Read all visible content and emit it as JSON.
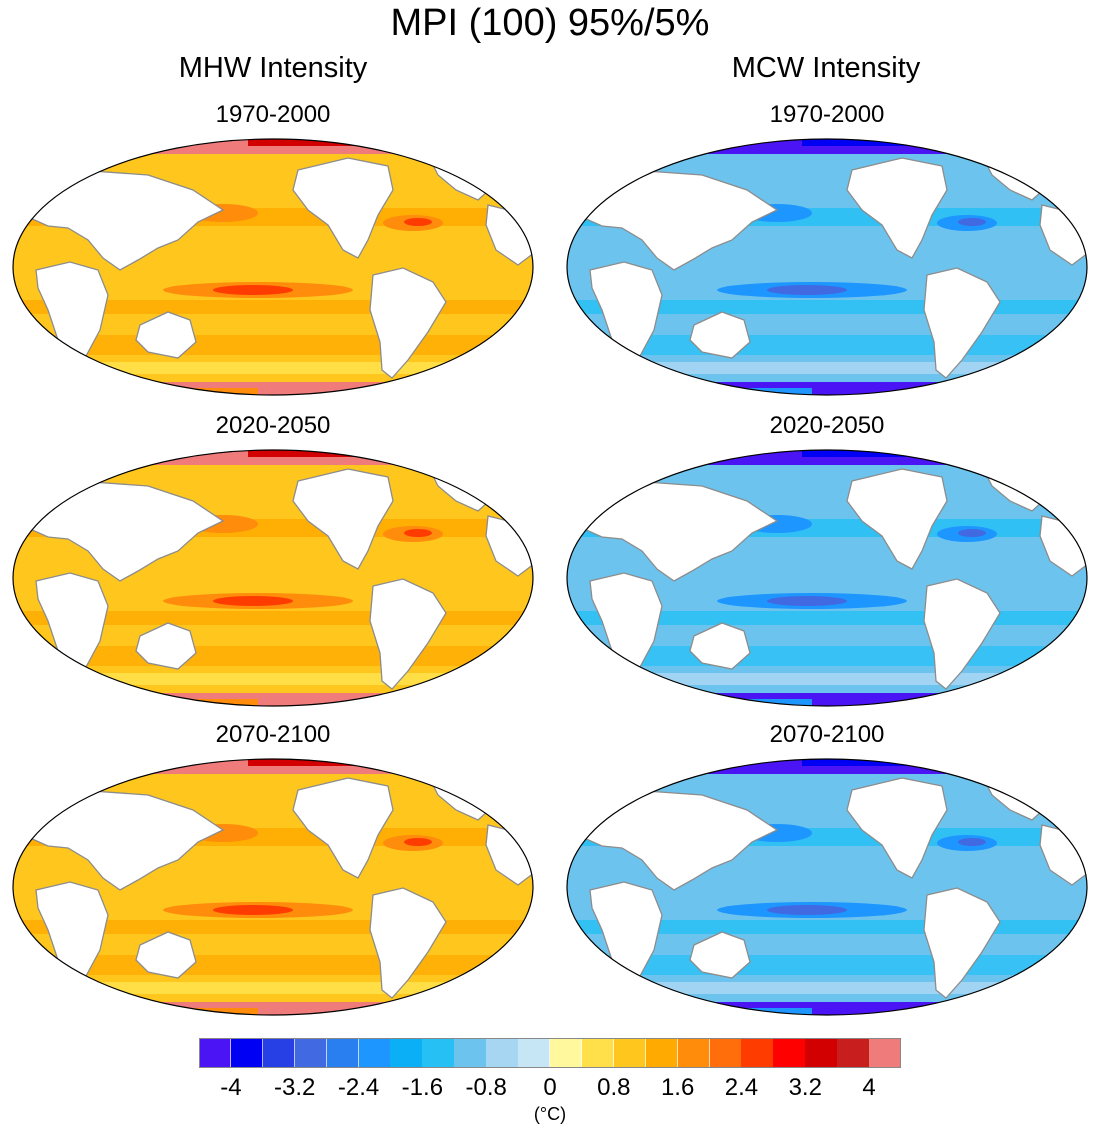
{
  "figure": {
    "title": "MPI (100) 95%/5%",
    "columns": [
      {
        "title": "MHW Intensity",
        "palette": "warm"
      },
      {
        "title": "MCW Intensity",
        "palette": "cool"
      }
    ],
    "periods": [
      "1970-2000",
      "2020-2050",
      "2070-2100"
    ]
  },
  "chart_data": {
    "type": "heatmap",
    "projection": "Robinson (Pacific-centred global map)",
    "title": "MPI (100) 95%/5%",
    "panels": [
      {
        "variable": "MHW Intensity",
        "period": "1970-2000"
      },
      {
        "variable": "MCW Intensity",
        "period": "1970-2000"
      },
      {
        "variable": "MHW Intensity",
        "period": "2020-2050"
      },
      {
        "variable": "MCW Intensity",
        "period": "2020-2050"
      },
      {
        "variable": "MHW Intensity",
        "period": "2070-2100"
      },
      {
        "variable": "MCW Intensity",
        "period": "2070-2100"
      }
    ],
    "colorbar": {
      "unit": "(°C)",
      "min": -4.4,
      "max": 4.4,
      "step": 0.4,
      "tick_values": [
        -4,
        -3.2,
        -2.4,
        -1.6,
        -0.8,
        0,
        0.8,
        1.6,
        2.4,
        3.2,
        4
      ],
      "tick_labels": [
        "-4",
        "-3.2",
        "-2.4",
        "-1.6",
        "-0.8",
        "0",
        "0.8",
        "1.6",
        "2.4",
        "3.2",
        "4"
      ],
      "colors": [
        "#4b14f5",
        "#0000f5",
        "#2640e6",
        "#4169e1",
        "#2a7ff0",
        "#1e96ff",
        "#0aaff5",
        "#26c0f5",
        "#6cc4ee",
        "#a6d6f2",
        "#c6e6f6",
        "#fff89c",
        "#ffe04a",
        "#ffc61e",
        "#ffaa00",
        "#ff8c0a",
        "#ff6e0a",
        "#ff3c00",
        "#ff0000",
        "#d20000",
        "#c81e1e",
        "#f07b7b"
      ]
    }
  }
}
